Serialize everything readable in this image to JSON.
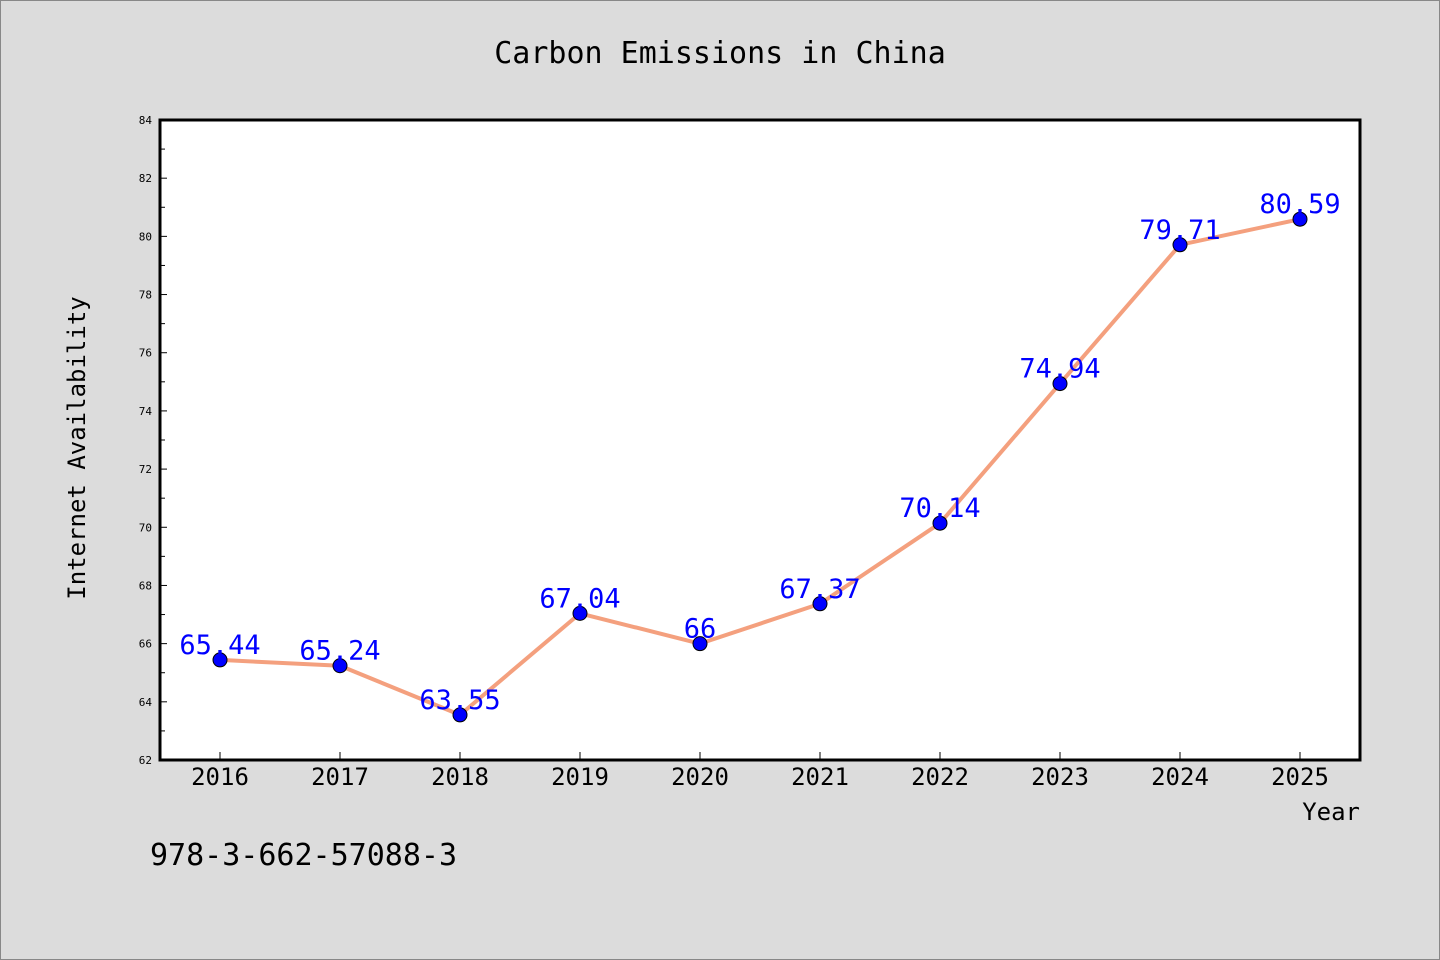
{
  "chart_data": {
    "type": "line",
    "title": "Carbon Emissions in China",
    "xlabel": "Year",
    "ylabel": "Internet Availability",
    "categories": [
      "2016",
      "2017",
      "2018",
      "2019",
      "2020",
      "2021",
      "2022",
      "2023",
      "2024",
      "2025"
    ],
    "series": [
      {
        "values": [
          65.44,
          65.24,
          63.55,
          67.04,
          66,
          67.37,
          70.14,
          74.94,
          79.71,
          80.59
        ],
        "line_color": "#f4a07e",
        "marker_color": "#0000ff"
      }
    ],
    "data_labels": [
      "65.44",
      "65.24",
      "63.55",
      "67.04",
      "66",
      "67.37",
      "70.14",
      "74.94",
      "79.71",
      "80.59"
    ],
    "ylim": [
      62,
      84
    ],
    "y_ticks": [
      "62",
      "64",
      "66",
      "68",
      "70",
      "72",
      "74",
      "76",
      "78",
      "80",
      "82",
      "84"
    ],
    "grid": false,
    "legend": "none",
    "data_label_color": "#0000ff",
    "background": "#dcdcdc",
    "plot_background": "#ffffff"
  },
  "footer_code": "978-3-662-57088-3"
}
